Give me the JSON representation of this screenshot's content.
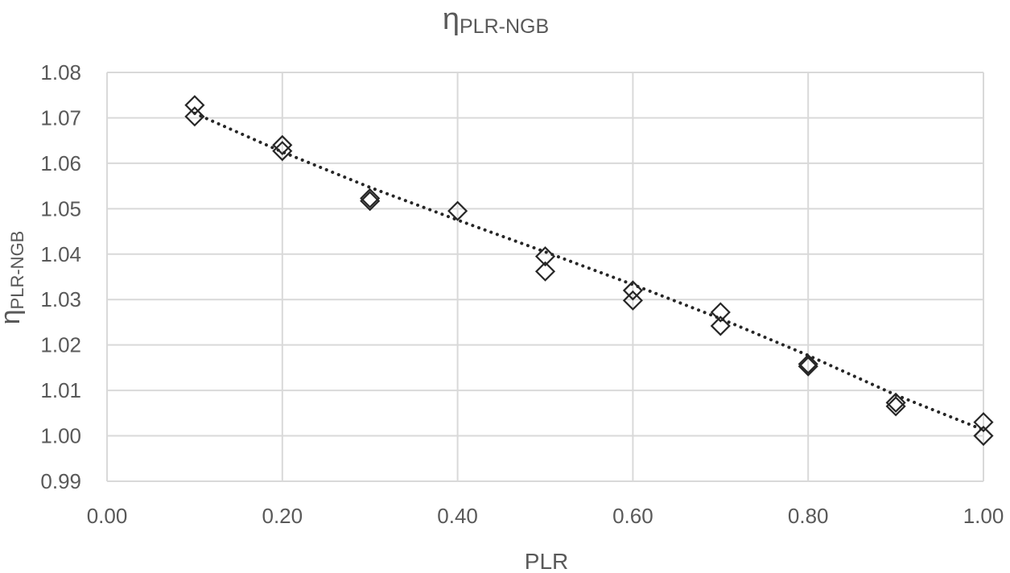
{
  "chart_data": {
    "type": "scatter",
    "title": "η",
    "title_sub": "PLR-NGB",
    "xlabel": "PLR",
    "ylabel": "η",
    "ylabel_sub": "PLR-NGB",
    "xlim": [
      0,
      1
    ],
    "ylim": [
      0.99,
      1.08
    ],
    "x_ticks": [
      0.0,
      0.2,
      0.4,
      0.6,
      0.8,
      1.0
    ],
    "x_tick_labels": [
      "0.00",
      "0.20",
      "0.40",
      "0.60",
      "0.80",
      "1.00"
    ],
    "y_ticks": [
      0.99,
      1.0,
      1.01,
      1.02,
      1.03,
      1.04,
      1.05,
      1.06,
      1.07,
      1.08
    ],
    "y_tick_labels": [
      "0.99",
      "1.00",
      "1.01",
      "1.02",
      "1.03",
      "1.04",
      "1.05",
      "1.06",
      "1.07",
      "1.08"
    ],
    "grid": true,
    "legend": "none",
    "marker": "open-diamond",
    "marker_color": "#262626",
    "grid_color": "#d9d9d9",
    "text_color": "#595959",
    "points": [
      {
        "x": 0.1,
        "y": 1.0728
      },
      {
        "x": 0.1,
        "y": 1.0703
      },
      {
        "x": 0.2,
        "y": 1.064
      },
      {
        "x": 0.2,
        "y": 1.0627
      },
      {
        "x": 0.3,
        "y": 1.0523
      },
      {
        "x": 0.3,
        "y": 1.0517
      },
      {
        "x": 0.4,
        "y": 1.0495
      },
      {
        "x": 0.5,
        "y": 1.0395
      },
      {
        "x": 0.5,
        "y": 1.0362
      },
      {
        "x": 0.6,
        "y": 1.032
      },
      {
        "x": 0.6,
        "y": 1.0298
      },
      {
        "x": 0.7,
        "y": 1.0272
      },
      {
        "x": 0.7,
        "y": 1.0242
      },
      {
        "x": 0.8,
        "y": 1.0158
      },
      {
        "x": 0.8,
        "y": 1.0153
      },
      {
        "x": 0.9,
        "y": 1.0073
      },
      {
        "x": 0.9,
        "y": 1.0065
      },
      {
        "x": 1.0,
        "y": 1.003
      },
      {
        "x": 1.0,
        "y": 1.0
      }
    ],
    "trendline": {
      "style": "dotted",
      "color": "#262626",
      "x": [
        0.1,
        0.2,
        0.3,
        0.4,
        0.5,
        0.6,
        0.7,
        0.8,
        0.9,
        1.0
      ],
      "y": [
        1.071,
        1.0625,
        1.0547,
        1.0475,
        1.0405,
        1.0333,
        1.0258,
        1.0177,
        1.009,
        1.0013
      ]
    }
  }
}
